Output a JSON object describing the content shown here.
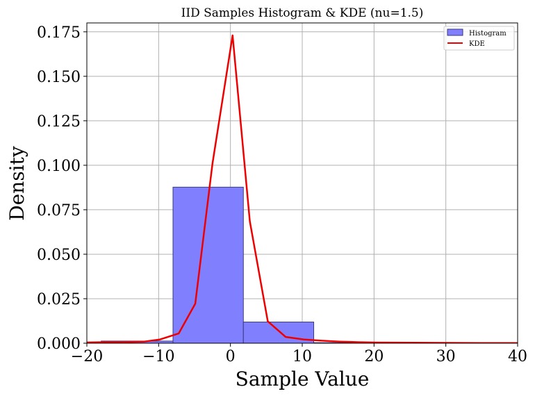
{
  "chart_data": {
    "type": "bar",
    "title": "IID Samples Histogram & KDE (nu=1.5)",
    "xlabel": "Sample Value",
    "ylabel": "Density",
    "xlim": [
      -20,
      40
    ],
    "ylim": [
      0,
      0.18
    ],
    "xticks": [
      "−20",
      "−10",
      "0",
      "10",
      "20",
      "30",
      "40"
    ],
    "xtick_values": [
      -20,
      -10,
      0,
      10,
      20,
      30,
      40
    ],
    "yticks": [
      "0.000",
      "0.025",
      "0.050",
      "0.075",
      "0.100",
      "0.125",
      "0.150",
      "0.175"
    ],
    "ytick_values": [
      0,
      0.025,
      0.05,
      0.075,
      0.1,
      0.125,
      0.15,
      0.175
    ],
    "grid": true,
    "legend_position": "top-right",
    "histogram": {
      "name": "Histogram",
      "color": "#8080ff",
      "edge_color": "#3a3a80",
      "bins": [
        {
          "x0": -28,
          "x1": -18,
          "density": 0.0004
        },
        {
          "x0": -18,
          "x1": -8,
          "density": 0.0012
        },
        {
          "x0": -8,
          "x1": 1.8,
          "density": 0.0877
        },
        {
          "x0": 1.8,
          "x1": 11.6,
          "density": 0.0119
        },
        {
          "x0": 11.6,
          "x1": 21.4,
          "density": 0.0003
        },
        {
          "x0": 21.4,
          "x1": 31.2,
          "density": 0.0001
        },
        {
          "x0": 31.2,
          "x1": 41,
          "density": 0.0001
        }
      ]
    },
    "kde": {
      "name": "KDE",
      "color": "#ee0000",
      "x": [
        -22,
        -17.5,
        -15,
        -12,
        -9.8,
        -7.2,
        -4.9,
        -2.5,
        0.3,
        2.7,
        5.2,
        7.7,
        10.2,
        12.7,
        15.2,
        17.7,
        20.2,
        25,
        30,
        35,
        40
      ],
      "y": [
        0.0003,
        0.0006,
        0.0006,
        0.0009,
        0.0021,
        0.0055,
        0.0222,
        0.101,
        0.173,
        0.0685,
        0.0123,
        0.0035,
        0.0021,
        0.0014,
        0.0009,
        0.0006,
        0.0004,
        0.0003,
        0.0002,
        0.0001,
        0.0001
      ]
    }
  }
}
